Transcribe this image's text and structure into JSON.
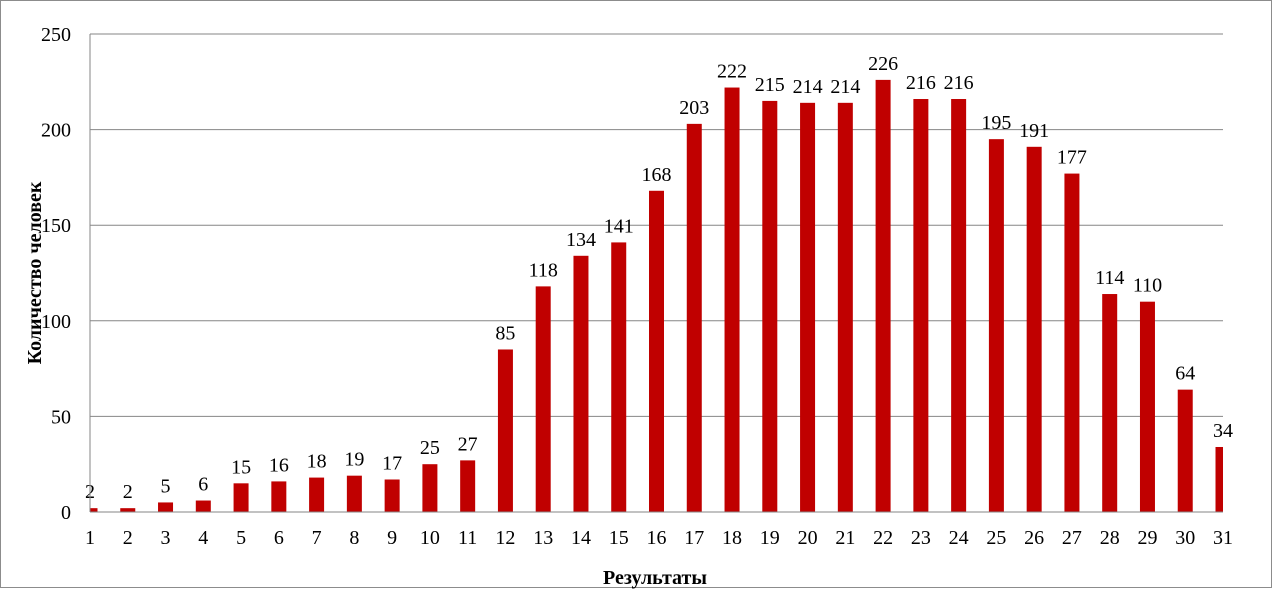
{
  "chart_data": {
    "type": "bar",
    "categories": [
      "1",
      "2",
      "3",
      "4",
      "5",
      "6",
      "7",
      "8",
      "9",
      "10",
      "11",
      "12",
      "13",
      "14",
      "15",
      "16",
      "17",
      "18",
      "19",
      "20",
      "21",
      "22",
      "23",
      "24",
      "25",
      "26",
      "27",
      "28",
      "29",
      "30",
      "31"
    ],
    "series": [
      {
        "values": [
          2,
          2,
          5,
          6,
          15,
          16,
          18,
          19,
          17,
          25,
          27,
          85,
          118,
          134,
          141,
          168,
          203,
          222,
          215,
          214,
          214,
          226,
          216,
          216,
          195,
          191,
          177,
          114,
          110,
          64,
          34
        ]
      }
    ],
    "title": "",
    "xlabel": "Результаты",
    "ylabel": "Количество человек",
    "ylim": [
      0,
      250
    ],
    "yticks": [
      "0",
      "50",
      "100",
      "150",
      "200",
      "250"
    ],
    "grid": true,
    "legend": "none",
    "bar_color": "#c00000",
    "grid_color": "#868686"
  }
}
